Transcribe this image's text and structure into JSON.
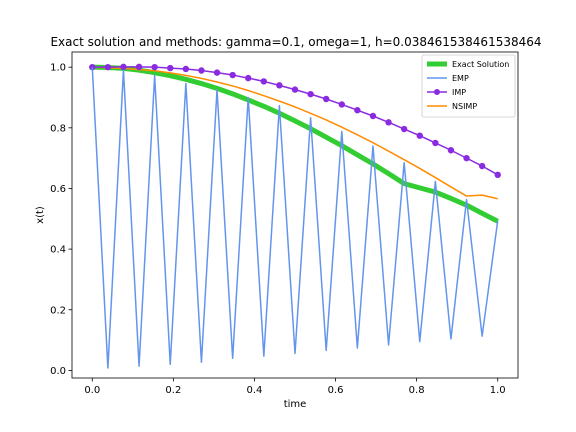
{
  "chart_data": {
    "type": "line",
    "title": "Exact solution and methods: gamma=0.1, omega=1, h=0.038461538461538464",
    "xlabel": "time",
    "ylabel": "x(t)",
    "xlim": [
      -0.05,
      1.05
    ],
    "ylim": [
      -0.025,
      1.05
    ],
    "xticks": [
      "0.0",
      "0.2",
      "0.4",
      "0.6",
      "0.8",
      "1.0"
    ],
    "yticks": [
      "0.0",
      "0.2",
      "0.4",
      "0.6",
      "0.8",
      "1.0"
    ],
    "grid": false,
    "legend_position": "top-right",
    "series": [
      {
        "name": "Exact Solution",
        "color": "#32cd32",
        "style": "thick-line",
        "x": [
          0.0,
          0.0385,
          0.0769,
          0.1154,
          0.1538,
          0.1923,
          0.2308,
          0.2692,
          0.3077,
          0.3462,
          0.3846,
          0.4231,
          0.4615,
          0.5,
          0.5385,
          0.5769,
          0.6154,
          0.6538,
          0.6923,
          0.7308,
          0.7692,
          0.8077,
          0.8462,
          0.8846,
          0.9231,
          0.9615,
          1.0
        ],
        "values": [
          1.0,
          0.999,
          0.996,
          0.99,
          0.982,
          0.972,
          0.96,
          0.946,
          0.93,
          0.912,
          0.892,
          0.871,
          0.848,
          0.823,
          0.797,
          0.769,
          0.741,
          0.711,
          0.681,
          0.649,
          0.616,
          0.602,
          0.588,
          0.567,
          0.545,
          0.518,
          0.492
        ]
      },
      {
        "name": "EMP",
        "color": "#6495ed",
        "style": "line",
        "x": [
          0.0,
          0.0385,
          0.0769,
          0.1154,
          0.1538,
          0.1923,
          0.2308,
          0.2692,
          0.3077,
          0.3462,
          0.3846,
          0.4231,
          0.4615,
          0.5,
          0.5385,
          0.5769,
          0.6154,
          0.6538,
          0.6923,
          0.7308,
          0.7692,
          0.8077,
          0.8462,
          0.8846,
          0.9231,
          0.9615,
          1.0
        ],
        "values": [
          1.0,
          0.008,
          0.99,
          0.014,
          0.972,
          0.02,
          0.946,
          0.027,
          0.926,
          0.04,
          0.9,
          0.047,
          0.873,
          0.056,
          0.833,
          0.066,
          0.788,
          0.074,
          0.74,
          0.084,
          0.685,
          0.095,
          0.623,
          0.104,
          0.563,
          0.113,
          0.494
        ]
      },
      {
        "name": "IMP",
        "color": "#8a2be2",
        "style": "line-markers",
        "x": [
          0.0,
          0.0385,
          0.0769,
          0.1154,
          0.1538,
          0.1923,
          0.2308,
          0.2692,
          0.3077,
          0.3462,
          0.3846,
          0.4231,
          0.4615,
          0.5,
          0.5385,
          0.5769,
          0.6154,
          0.6538,
          0.6923,
          0.7308,
          0.7692,
          0.8077,
          0.8462,
          0.8846,
          0.9231,
          0.9615,
          1.0
        ],
        "values": [
          1.0,
          1.0,
          1.001,
          1.001,
          1.0,
          0.997,
          0.994,
          0.989,
          0.982,
          0.974,
          0.964,
          0.953,
          0.94,
          0.926,
          0.911,
          0.895,
          0.877,
          0.858,
          0.839,
          0.818,
          0.796,
          0.774,
          0.75,
          0.726,
          0.7,
          0.674,
          0.645
        ]
      },
      {
        "name": "NSIMP",
        "color": "#ff8c00",
        "style": "line",
        "x": [
          0.0,
          0.0385,
          0.0769,
          0.1154,
          0.1538,
          0.1923,
          0.2308,
          0.2692,
          0.3077,
          0.3462,
          0.3846,
          0.4231,
          0.4615,
          0.5,
          0.5385,
          0.5769,
          0.6154,
          0.6538,
          0.6923,
          0.7308,
          0.7692,
          0.8077,
          0.8462,
          0.8846,
          0.9231,
          0.9615,
          1.0
        ],
        "values": [
          1.0,
          0.998,
          0.996,
          0.992,
          0.988,
          0.981,
          0.973,
          0.963,
          0.951,
          0.938,
          0.923,
          0.906,
          0.888,
          0.869,
          0.848,
          0.826,
          0.802,
          0.777,
          0.751,
          0.723,
          0.695,
          0.666,
          0.636,
          0.605,
          0.575,
          0.578,
          0.566
        ]
      }
    ]
  }
}
